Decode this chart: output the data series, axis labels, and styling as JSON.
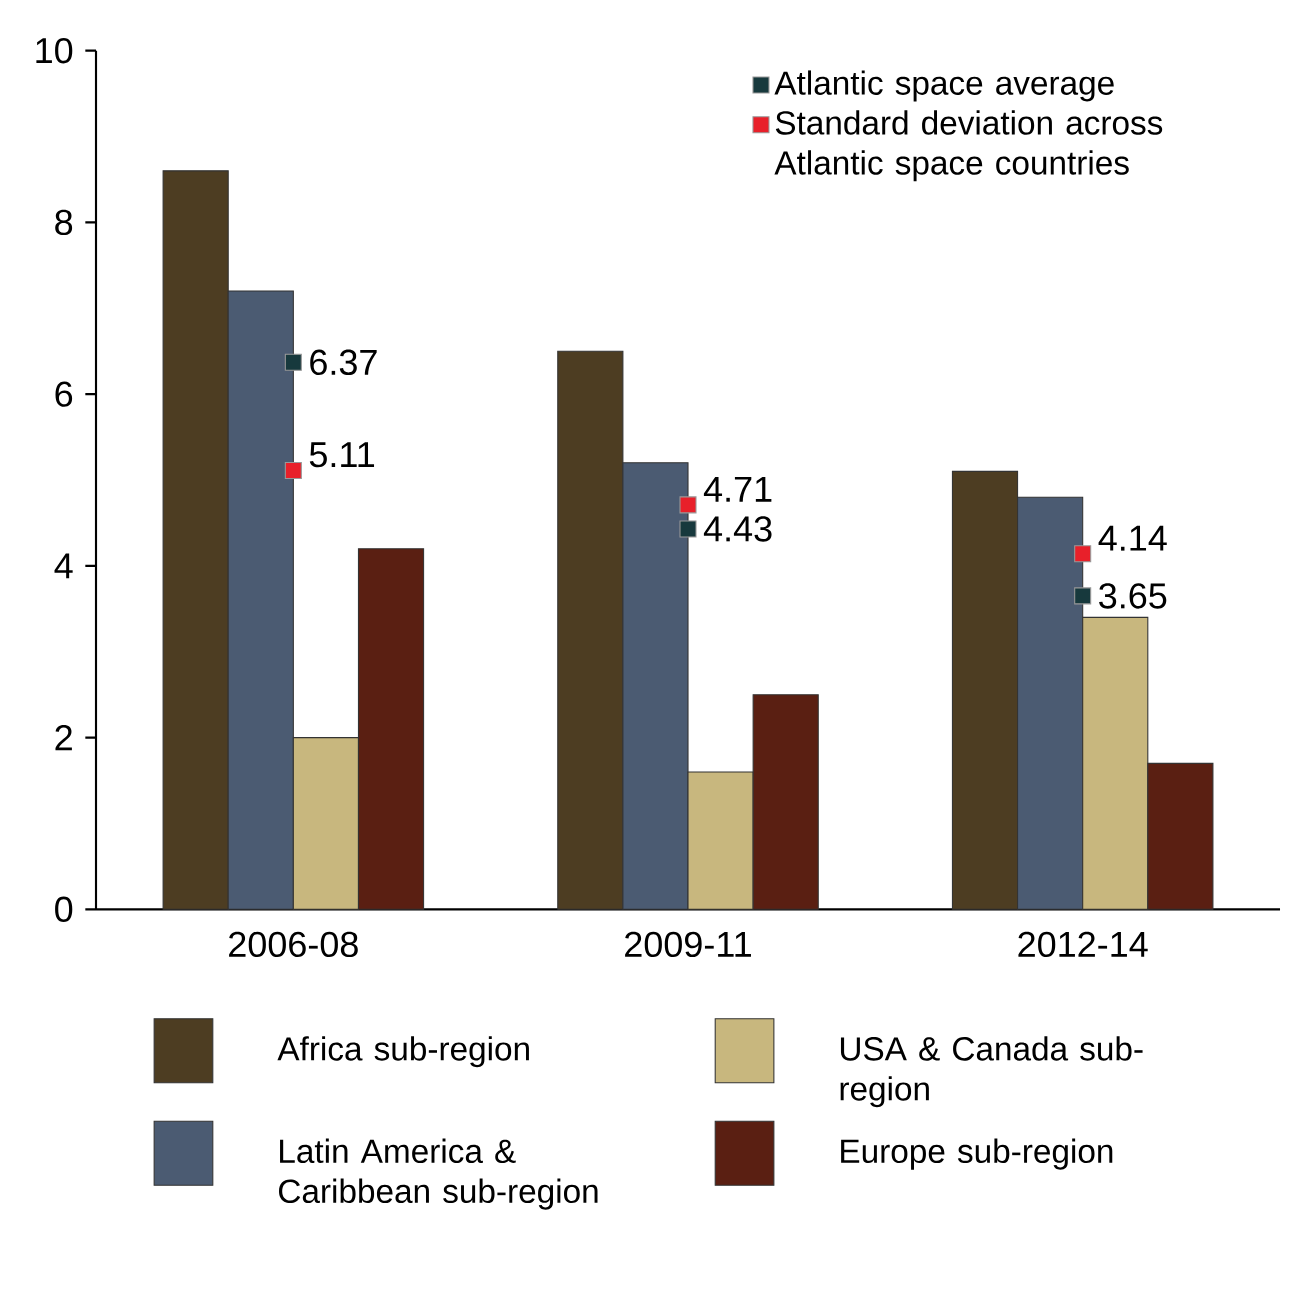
{
  "chart_data": {
    "type": "bar",
    "categories": [
      "2006-08",
      "2009-11",
      "2012-14"
    ],
    "series": [
      {
        "name": "Africa sub-region",
        "color": "#4d3d22",
        "values": [
          8.6,
          6.5,
          5.1
        ]
      },
      {
        "name": "Latin America & Caribbean sub-region",
        "color": "#4b5b72",
        "values": [
          7.2,
          5.2,
          4.8
        ]
      },
      {
        "name": "USA & Canada sub-region",
        "color": "#c8b77e",
        "values": [
          2.0,
          1.6,
          3.4
        ]
      },
      {
        "name": "Europe sub-region",
        "color": "#5a1f12",
        "values": [
          4.2,
          2.5,
          1.7
        ]
      },
      {
        "name": "Atlantic space average",
        "type": "scatter",
        "color": "#17393d",
        "values": [
          6.37,
          4.43,
          3.65
        ],
        "value_labels": [
          "6.37",
          "4.43",
          "3.65"
        ]
      },
      {
        "name": "Standard deviation across Atlantic space countries",
        "type": "scatter",
        "color": "#e8202a",
        "values": [
          5.11,
          4.71,
          4.14
        ],
        "value_labels": [
          "5.11",
          "4.71",
          "4.14"
        ]
      }
    ],
    "ylim": [
      0,
      10
    ],
    "yticks": [
      0,
      2,
      4,
      6,
      8,
      10
    ],
    "marker": "square",
    "grid": false,
    "legend": "bottom"
  }
}
